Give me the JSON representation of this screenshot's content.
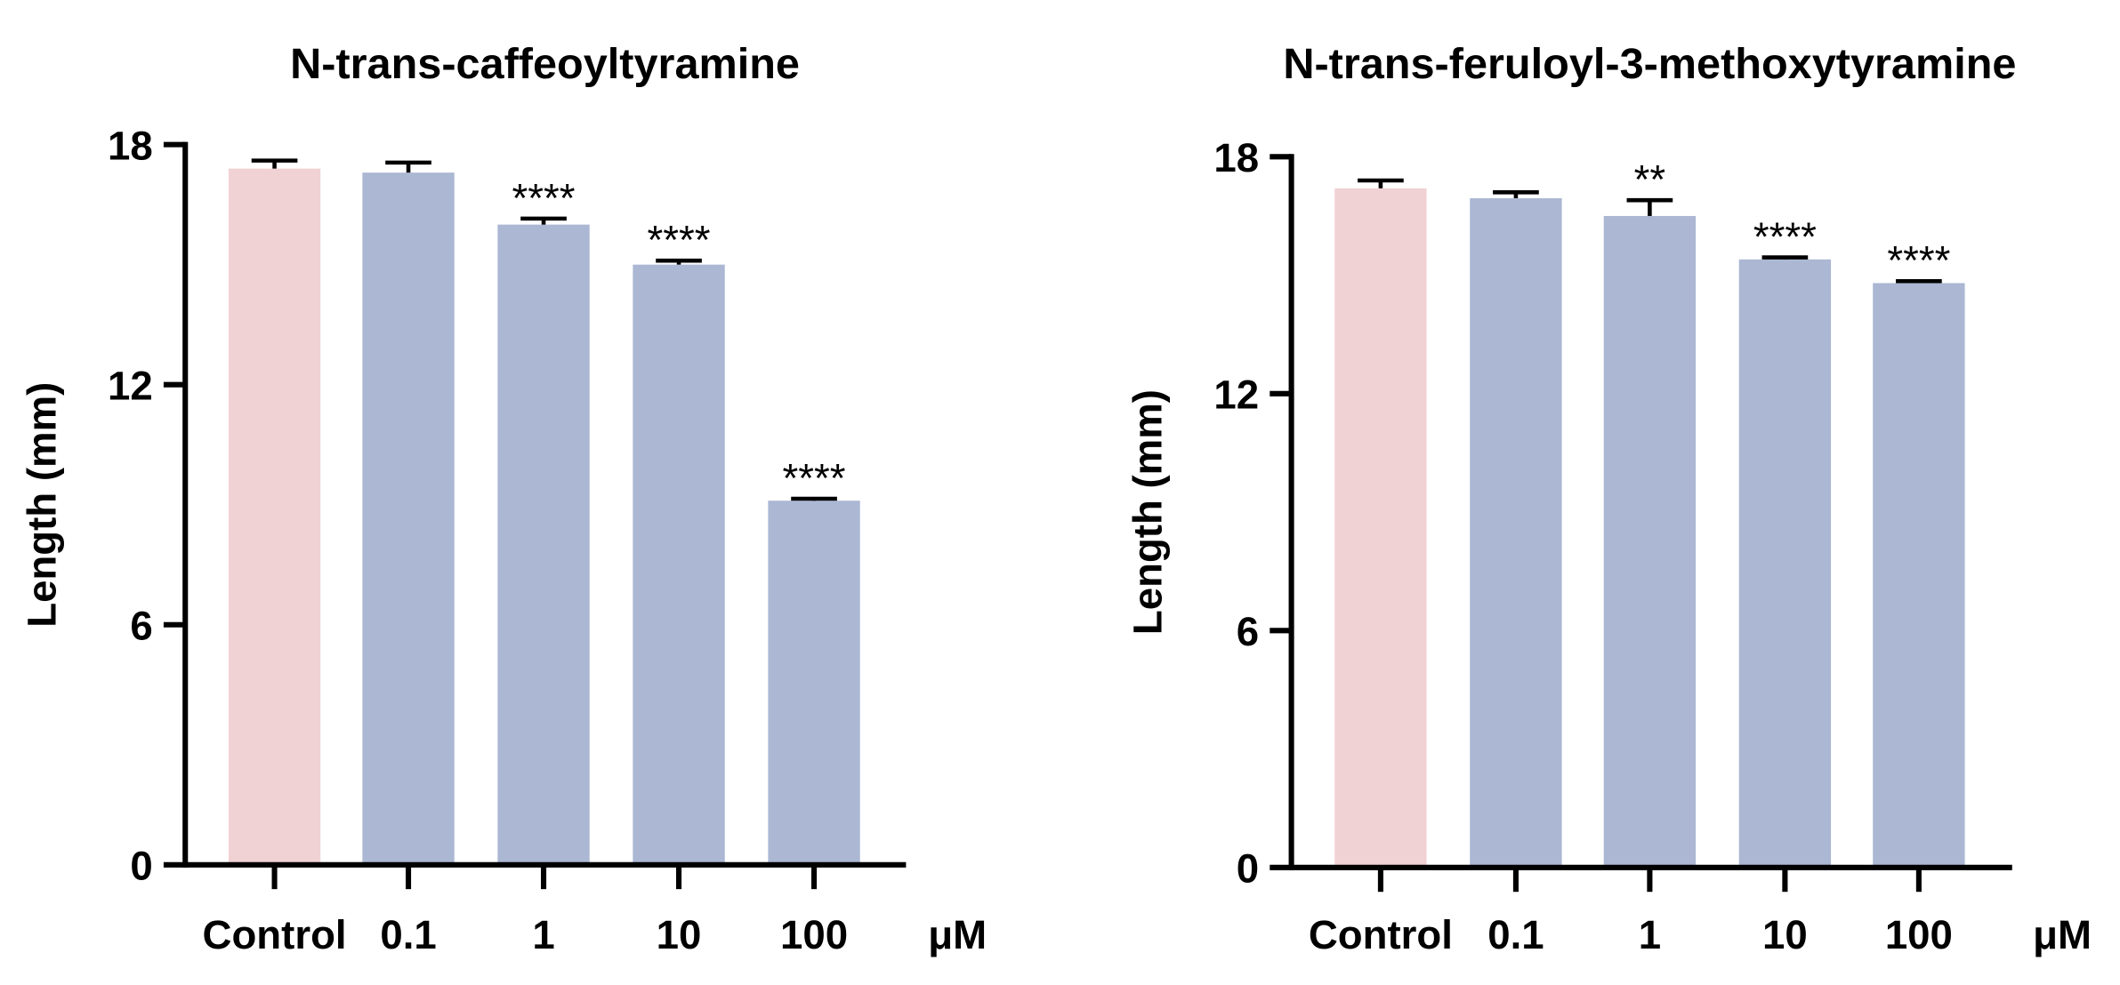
{
  "chart_data": [
    {
      "type": "bar",
      "title": "N-trans-caffeoyltyramine",
      "y_label": "Length (mm)",
      "x_unit": "μM",
      "categories": [
        "Control",
        "0.1",
        "1",
        "10",
        "100"
      ],
      "values": [
        17.4,
        17.3,
        16.0,
        15.0,
        9.1
      ],
      "errors": [
        0.2,
        0.25,
        0.15,
        0.1,
        0.05
      ],
      "annotations": [
        null,
        null,
        "****",
        "****",
        "****"
      ],
      "colors": [
        "#f0d2d4",
        "#abb7d3",
        "#abb7d3",
        "#abb7d3",
        "#abb7d3"
      ],
      "ylim": [
        0,
        18
      ],
      "yticks": [
        0,
        6,
        12,
        18
      ]
    },
    {
      "type": "bar",
      "title": "N-trans-feruloyl-3-methoxytyramine",
      "y_label": "Length (mm)",
      "x_unit": "μM",
      "categories": [
        "Control",
        "0.1",
        "1",
        "10",
        "100"
      ],
      "values": [
        17.2,
        16.95,
        16.5,
        15.4,
        14.8
      ],
      "errors": [
        0.2,
        0.15,
        0.4,
        0.05,
        0.05
      ],
      "annotations": [
        null,
        null,
        "**",
        "****",
        "****"
      ],
      "colors": [
        "#f0d2d4",
        "#abb7d3",
        "#abb7d3",
        "#abb7d3",
        "#abb7d3"
      ],
      "ylim": [
        0,
        18
      ],
      "yticks": [
        0,
        6,
        12,
        18
      ]
    }
  ]
}
